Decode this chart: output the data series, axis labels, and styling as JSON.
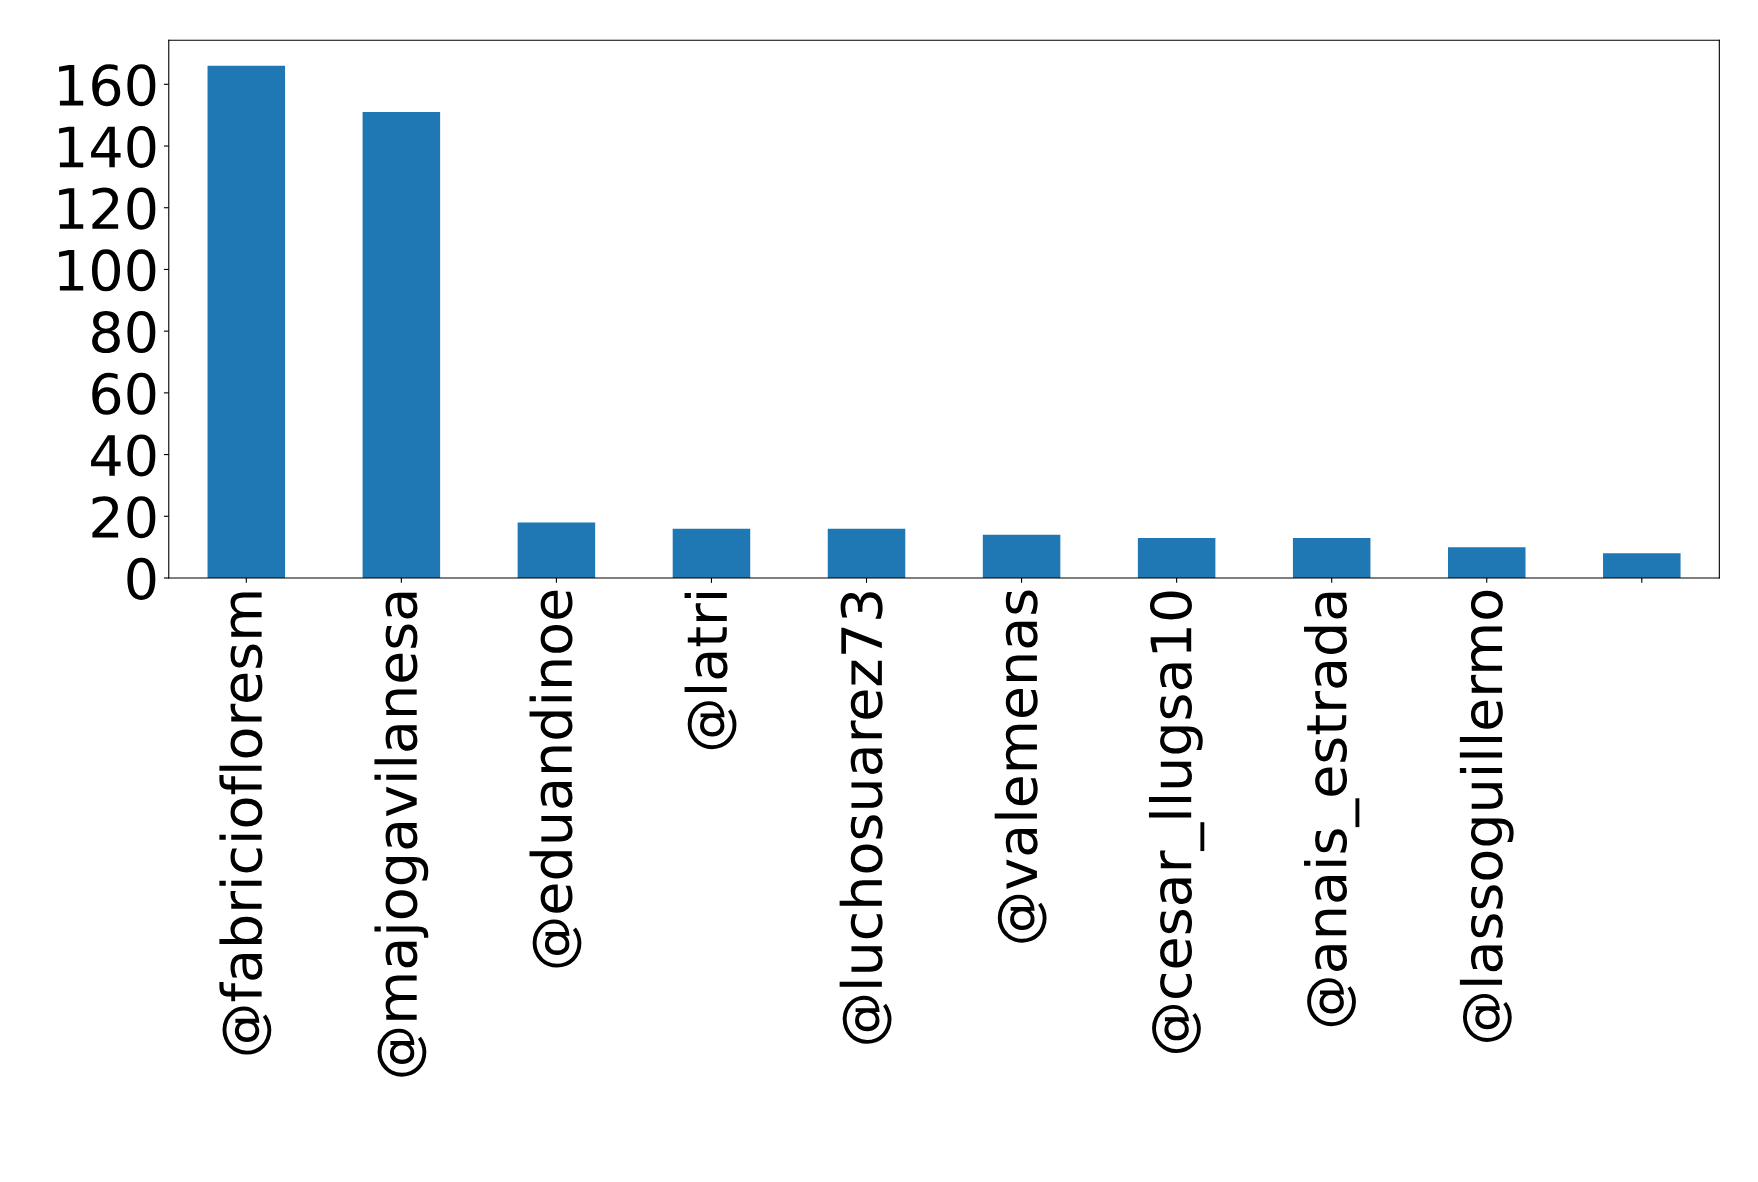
{
  "chart_data": {
    "type": "bar",
    "categories": [
      "@fabriciofloresm",
      "@majogavilanesa",
      "@eduandinoe",
      "@latri",
      "@luchosuarez73",
      "@valemenas",
      "@cesar_llugsa10",
      "@anais_estrada",
      "@lassoguillermo",
      null
    ],
    "values": [
      166,
      151,
      18,
      16,
      16,
      14,
      13,
      13,
      10,
      8
    ],
    "color": "#1f77b4",
    "ylim": [
      0,
      174.3
    ],
    "yticks": [
      0,
      20,
      40,
      60,
      80,
      100,
      120,
      140,
      160
    ],
    "grid": false,
    "legend": false
  }
}
